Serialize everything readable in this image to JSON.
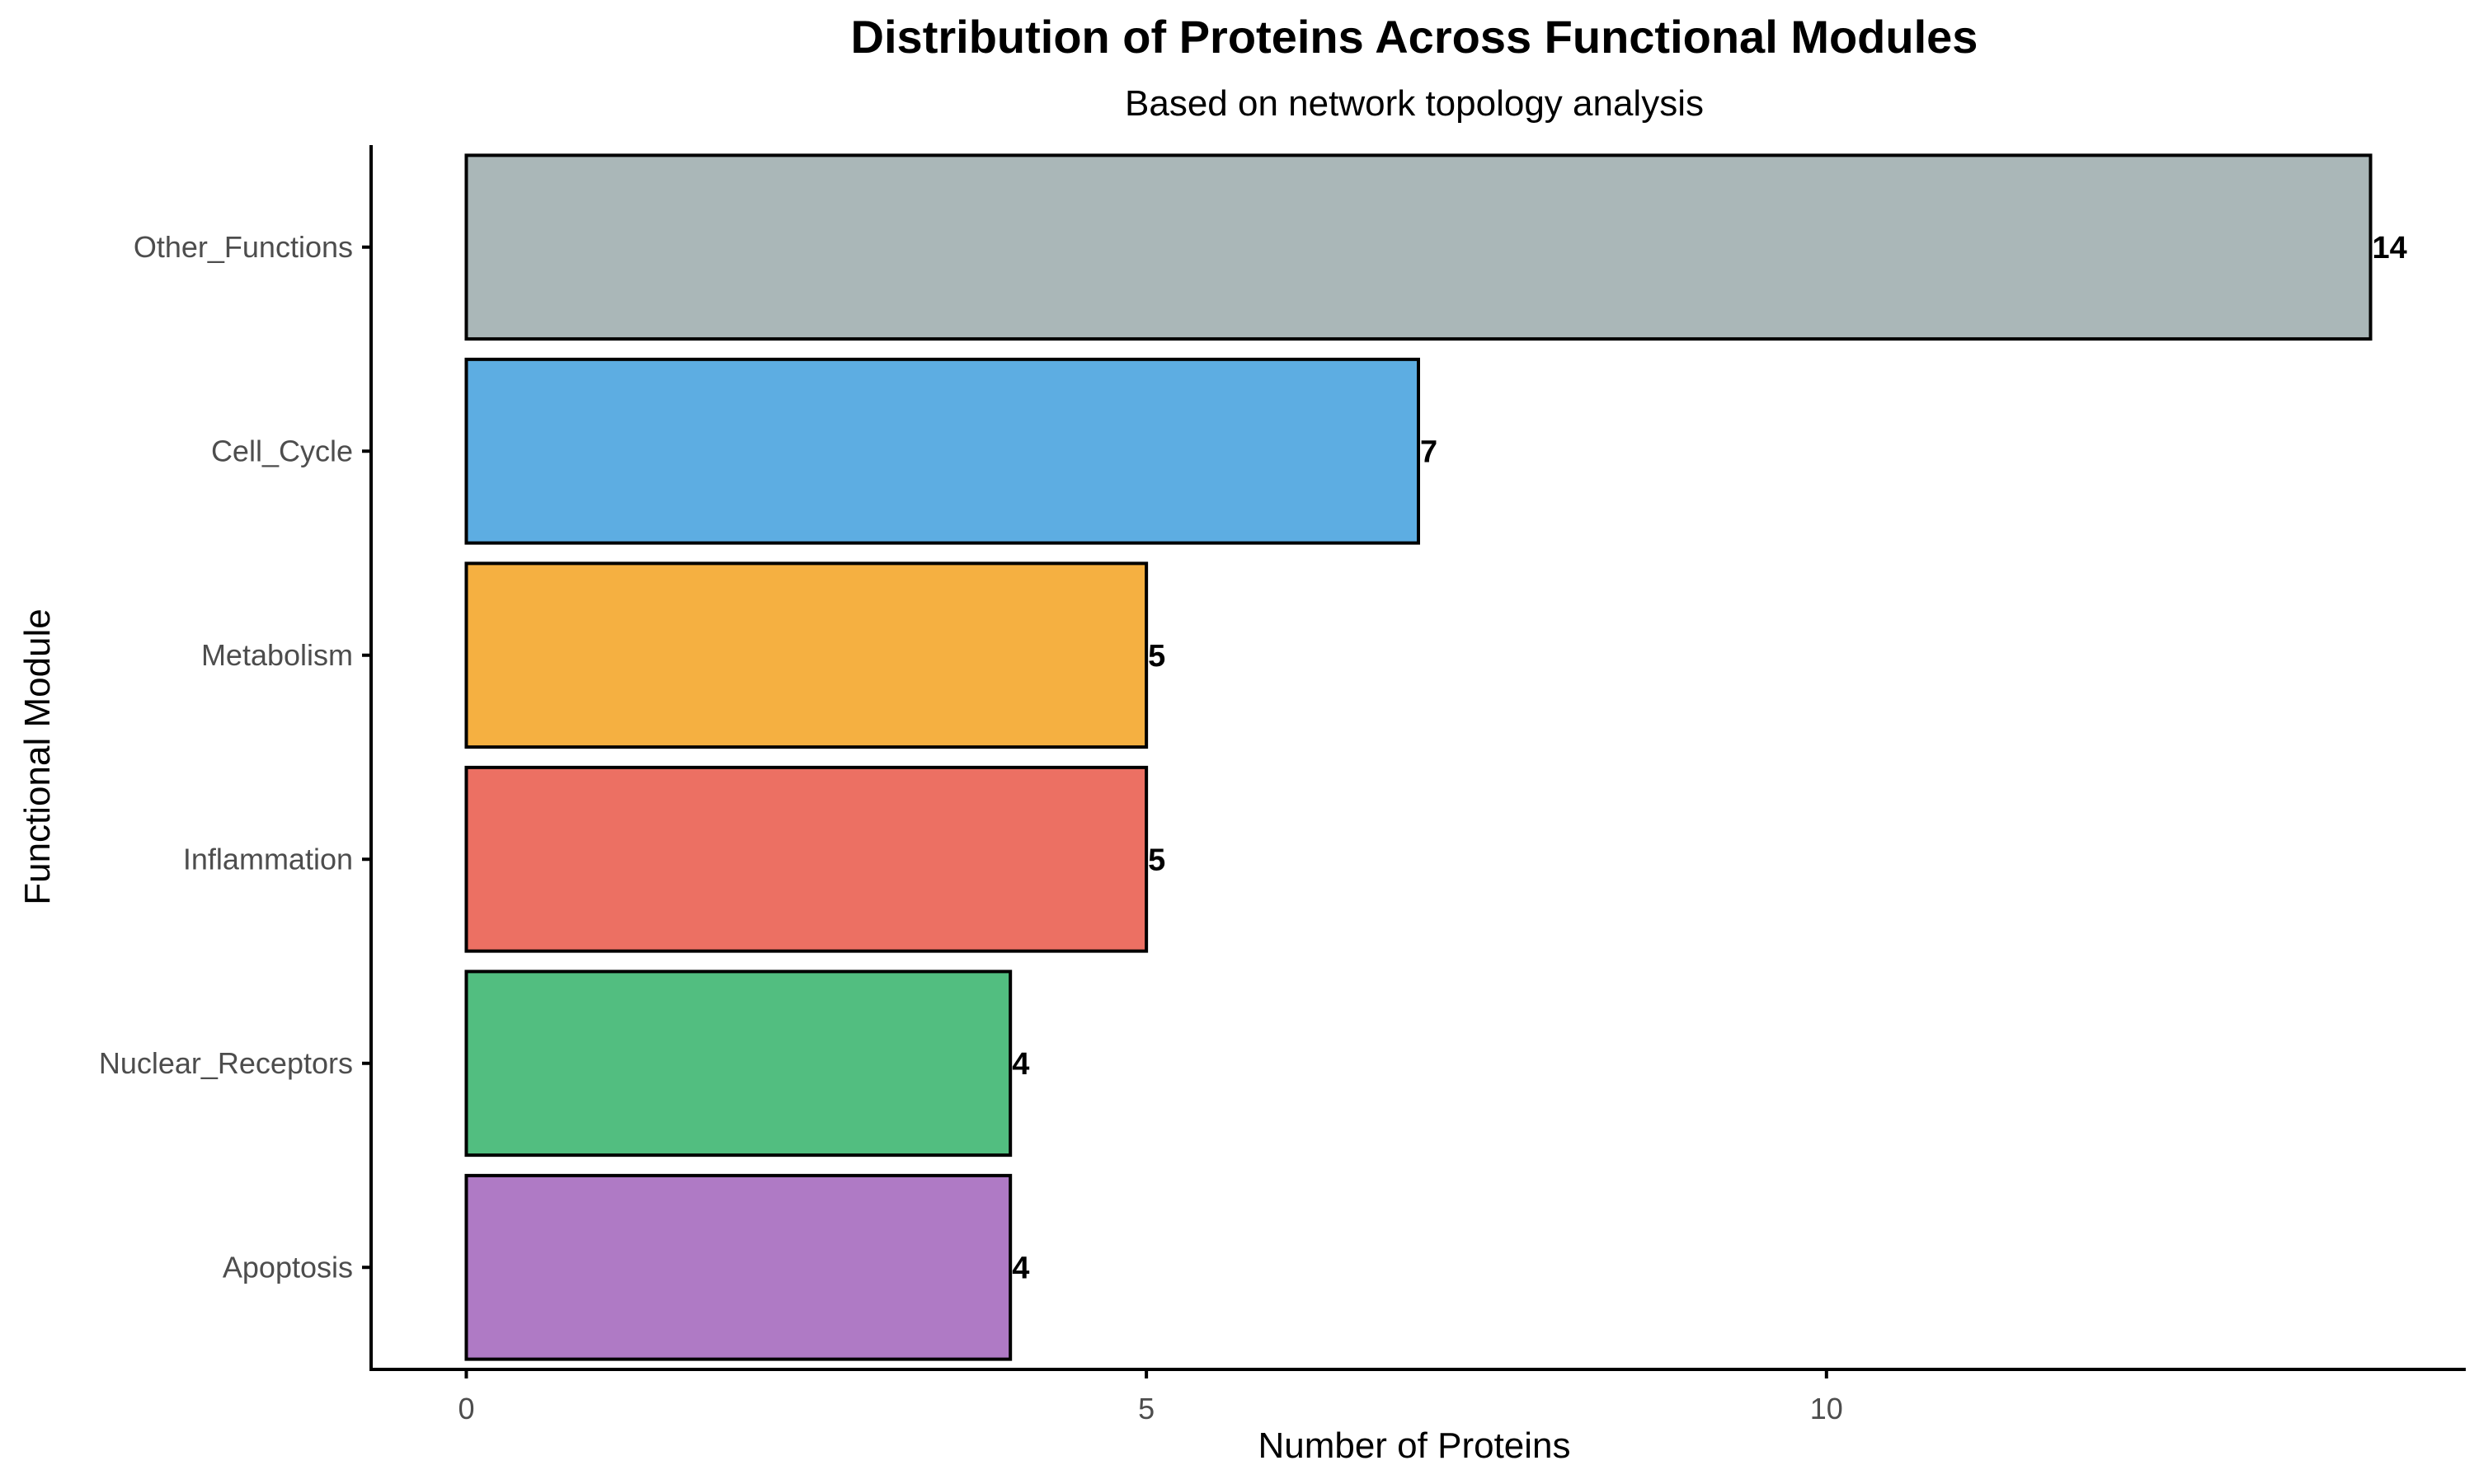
{
  "chart_data": {
    "type": "bar",
    "orientation": "horizontal",
    "title": "Distribution of Proteins Across Functional Modules",
    "subtitle": "Based on network topology analysis",
    "xlabel": "Number of Proteins",
    "ylabel": "Functional Module",
    "categories": [
      "Other_Functions",
      "Cell_Cycle",
      "Metabolism",
      "Inflammation",
      "Nuclear_Receptors",
      "Apoptosis"
    ],
    "values": [
      14,
      7,
      5,
      5,
      4,
      4
    ],
    "colors": [
      "#AAB7B8",
      "#5DADE2",
      "#F5B041",
      "#EC7063",
      "#52BE80",
      "#AF7AC5"
    ],
    "xlim": [
      -0.7,
      14.7
    ],
    "xticks": [
      0,
      5,
      10
    ],
    "grid": false,
    "legend": "none"
  }
}
